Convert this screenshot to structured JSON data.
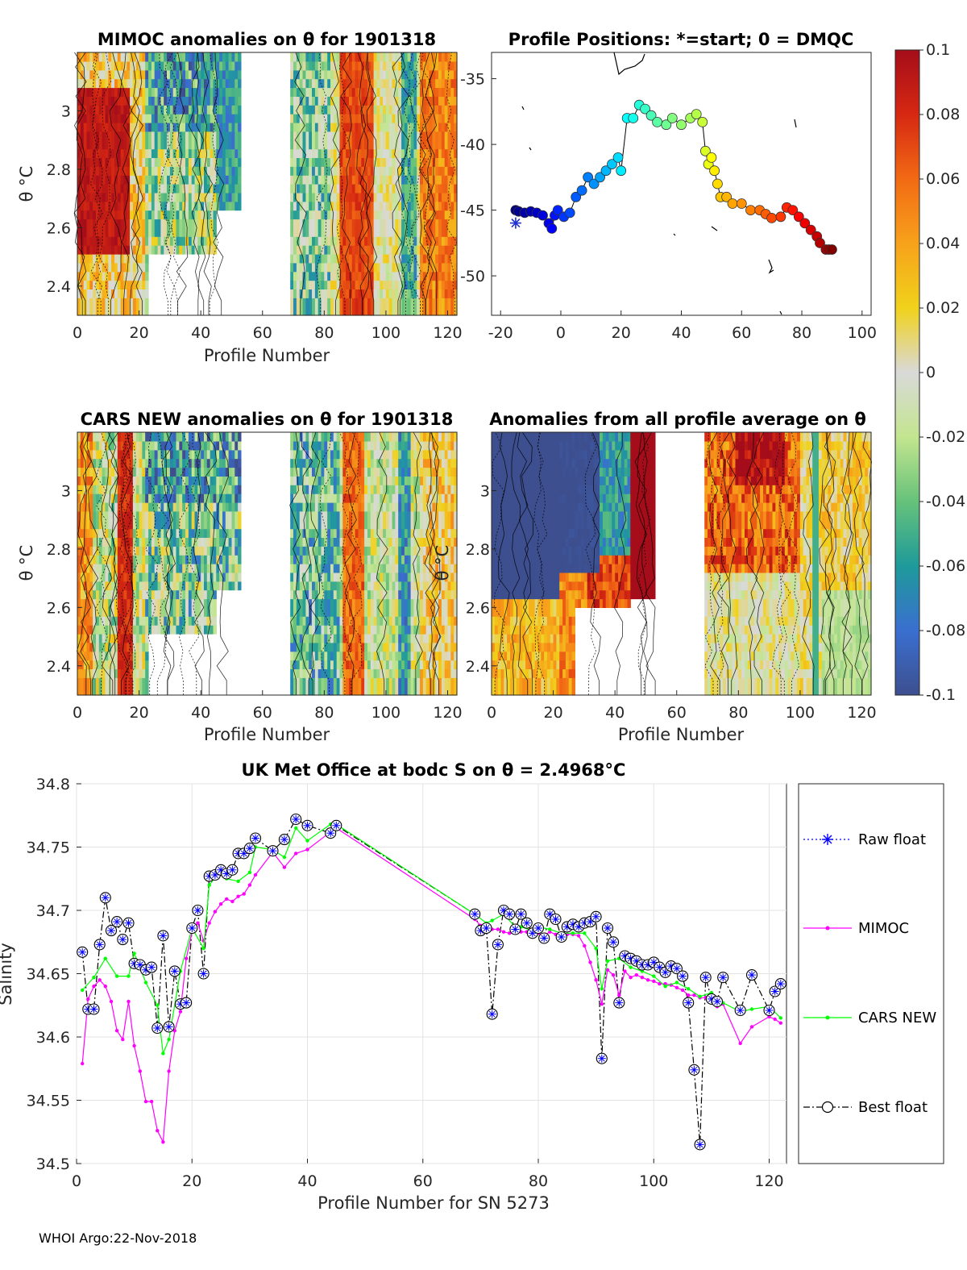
{
  "footer": "WHOI Argo:22-Nov-2018",
  "colorbar": {
    "ticks": [
      "0.1",
      "0.08",
      "0.06",
      "0.04",
      "0.02",
      "0",
      "-0.02",
      "-0.04",
      "-0.06",
      "-0.08",
      "-0.1"
    ],
    "range": [
      -0.1,
      0.1
    ]
  },
  "colors": {
    "mimoc": "#ff00ff",
    "cars": "#00ff00",
    "raw": "#0000ff",
    "best": "#000000"
  },
  "chart_data": [
    {
      "type": "heatmap",
      "id": "mimoc",
      "title": "MIMOC anomalies on θ  for 1901318",
      "xlabel": "Profile Number",
      "ylabel": "θ °C",
      "xlim": [
        0,
        123
      ],
      "ylim": [
        2.3,
        3.2
      ],
      "xticks": [
        "0",
        "20",
        "40",
        "60",
        "80",
        "100",
        "120"
      ],
      "yticks": [
        "2.4",
        "2.6",
        "2.8",
        "3"
      ]
    },
    {
      "type": "scatter",
      "id": "positions",
      "title": "Profile Positions: *=start; 0 = DMQC",
      "xlim": [
        -23,
        103
      ],
      "ylim": [
        -53,
        -33
      ],
      "xticks": [
        "-20",
        "0",
        "20",
        "40",
        "60",
        "80",
        "100"
      ],
      "yticks": [
        "-35",
        "-40",
        "-45",
        "-50"
      ],
      "points": [
        [
          -15,
          -45
        ],
        [
          -14,
          -45.1
        ],
        [
          -12,
          -45.2
        ],
        [
          -10,
          -45.1
        ],
        [
          -8,
          -45.2
        ],
        [
          -6,
          -45.4
        ],
        [
          -4,
          -46
        ],
        [
          -3,
          -46.4
        ],
        [
          -2,
          -45.4
        ],
        [
          -1,
          -45
        ],
        [
          1,
          -45.5
        ],
        [
          3,
          -45.2
        ],
        [
          5,
          -44
        ],
        [
          7,
          -43.5
        ],
        [
          9,
          -42.5
        ],
        [
          11,
          -43
        ],
        [
          13,
          -42.5
        ],
        [
          15,
          -42
        ],
        [
          17,
          -41.5
        ],
        [
          19,
          -41
        ],
        [
          20,
          -42
        ],
        [
          22,
          -38
        ],
        [
          24,
          -38
        ],
        [
          26,
          -37
        ],
        [
          28,
          -37.3
        ],
        [
          30,
          -37.8
        ],
        [
          32,
          -38.3
        ],
        [
          35,
          -38.5
        ],
        [
          37,
          -38
        ],
        [
          40,
          -38.5
        ],
        [
          43,
          -38
        ],
        [
          45,
          -37.7
        ],
        [
          47,
          -38.3
        ],
        [
          48,
          -40.5
        ],
        [
          49,
          -41.5
        ],
        [
          50,
          -41
        ],
        [
          51,
          -42
        ],
        [
          52,
          -43
        ],
        [
          53,
          -44
        ],
        [
          55,
          -44
        ],
        [
          57,
          -44.5
        ],
        [
          60,
          -44.5
        ],
        [
          63,
          -45
        ],
        [
          66,
          -45
        ],
        [
          68,
          -45.3
        ],
        [
          70,
          -45.6
        ],
        [
          73,
          -45.5
        ],
        [
          75,
          -44.8
        ],
        [
          77,
          -45
        ],
        [
          79,
          -45.5
        ],
        [
          81,
          -46
        ],
        [
          83,
          -46.5
        ],
        [
          85,
          -47
        ],
        [
          86,
          -47.5
        ],
        [
          88,
          -48
        ],
        [
          89,
          -48
        ],
        [
          90,
          -48
        ]
      ]
    },
    {
      "type": "heatmap",
      "id": "cars",
      "title": "CARS NEW anomalies on θ for 1901318",
      "xlabel": "Profile Number",
      "ylabel": "θ °C",
      "xlim": [
        0,
        123
      ],
      "ylim": [
        2.3,
        3.2
      ],
      "xticks": [
        "0",
        "20",
        "40",
        "60",
        "80",
        "100",
        "120"
      ],
      "yticks": [
        "2.4",
        "2.6",
        "2.8",
        "3"
      ]
    },
    {
      "type": "heatmap",
      "id": "allavg",
      "title": "Anomalies from all profile average on θ",
      "xlabel": "Profile Number",
      "ylabel": "θ °C",
      "xlim": [
        0,
        123
      ],
      "ylim": [
        2.3,
        3.2
      ],
      "xticks": [
        "0",
        "20",
        "40",
        "60",
        "80",
        "100",
        "120"
      ],
      "yticks": [
        "2.4",
        "2.6",
        "2.8",
        "3"
      ]
    },
    {
      "type": "line",
      "id": "salinity",
      "title": "UK Met Office at bodc S on θ = 2.4968°C",
      "xlabel": "Profile Number for SN 5273",
      "ylabel": "Salinity",
      "xlim": [
        0,
        123
      ],
      "ylim": [
        34.5,
        34.8
      ],
      "xticks": [
        "0",
        "20",
        "40",
        "60",
        "80",
        "100",
        "120"
      ],
      "yticks": [
        "34.5",
        "34.55",
        "34.6",
        "34.65",
        "34.7",
        "34.75",
        "34.8"
      ],
      "legend": [
        "Raw float",
        "MIMOC",
        "CARS NEW",
        "Best float"
      ],
      "series": [
        {
          "name": "Best float",
          "x": [
            1,
            2,
            3,
            4,
            5,
            6,
            7,
            8,
            9,
            10,
            11,
            12,
            13,
            14,
            15,
            16,
            17,
            18,
            19,
            20,
            21,
            22,
            23,
            24,
            25,
            26,
            27,
            28,
            29,
            30,
            31,
            34,
            36,
            38,
            40,
            44,
            45,
            69,
            70,
            71,
            72,
            73,
            74,
            75,
            76,
            77,
            78,
            79,
            80,
            81,
            82,
            83,
            84,
            85,
            86,
            87,
            88,
            89,
            90,
            91,
            92,
            93,
            94,
            95,
            96,
            97,
            98,
            99,
            100,
            101,
            102,
            103,
            104,
            105,
            106,
            107,
            108,
            109,
            110,
            111,
            112,
            115,
            117,
            120,
            121,
            122
          ],
          "values": [
            34.667,
            34.622,
            34.622,
            34.673,
            34.71,
            34.684,
            34.691,
            34.677,
            34.69,
            34.658,
            34.657,
            34.653,
            34.655,
            34.607,
            34.68,
            34.608,
            34.652,
            34.626,
            34.627,
            34.686,
            34.7,
            34.65,
            34.727,
            34.728,
            34.732,
            34.729,
            34.732,
            34.745,
            34.745,
            34.749,
            34.757,
            34.747,
            34.756,
            34.772,
            34.767,
            34.761,
            34.767,
            34.697,
            34.684,
            34.686,
            34.618,
            34.673,
            34.7,
            34.697,
            34.685,
            34.697,
            34.69,
            34.682,
            34.686,
            34.678,
            34.697,
            34.693,
            34.679,
            34.687,
            34.689,
            34.687,
            34.69,
            34.691,
            34.695,
            34.583,
            34.686,
            34.675,
            34.627,
            34.664,
            34.662,
            34.66,
            34.657,
            34.657,
            34.659,
            34.655,
            34.651,
            34.656,
            34.654,
            34.648,
            34.627,
            34.574,
            34.515,
            34.647,
            34.63,
            34.628,
            34.647,
            34.621,
            34.649,
            34.621,
            34.636,
            34.642
          ]
        },
        {
          "name": "CARS NEW",
          "x": [
            1,
            3,
            5,
            7,
            9,
            10,
            12,
            14,
            15,
            16,
            18,
            20,
            22,
            23,
            24,
            25,
            26,
            28,
            30,
            31,
            34,
            36,
            38,
            40,
            44,
            45,
            69,
            71,
            72,
            74,
            76,
            77,
            79,
            80,
            82,
            84,
            86,
            88,
            90,
            91,
            92,
            94,
            96,
            98,
            100,
            102,
            104,
            106,
            108,
            110,
            112,
            115,
            117,
            120,
            122
          ],
          "values": [
            34.637,
            34.647,
            34.662,
            34.648,
            34.648,
            34.666,
            34.643,
            34.625,
            34.587,
            34.598,
            34.652,
            34.686,
            34.67,
            34.72,
            34.726,
            34.73,
            34.725,
            34.723,
            34.73,
            34.75,
            34.748,
            34.742,
            34.765,
            34.755,
            34.768,
            34.768,
            34.697,
            34.69,
            34.692,
            34.697,
            34.687,
            34.687,
            34.684,
            34.687,
            34.685,
            34.682,
            34.682,
            34.682,
            34.67,
            34.638,
            34.66,
            34.662,
            34.655,
            34.652,
            34.648,
            34.64,
            34.643,
            34.638,
            34.632,
            34.635,
            34.627,
            34.62,
            34.622,
            34.624,
            34.615
          ]
        },
        {
          "name": "MIMOC",
          "x": [
            1,
            2,
            3,
            4,
            5,
            6,
            7,
            8,
            9,
            10,
            11,
            12,
            13,
            14,
            15,
            16,
            17,
            18,
            19,
            20,
            21,
            22,
            23,
            24,
            25,
            26,
            27,
            28,
            29,
            30,
            31,
            34,
            36,
            38,
            40,
            44,
            45,
            69,
            70,
            71,
            72,
            73,
            74,
            75,
            76,
            77,
            78,
            79,
            80,
            81,
            82,
            83,
            84,
            85,
            86,
            87,
            88,
            89,
            90,
            91,
            92,
            93,
            94,
            95,
            96,
            97,
            98,
            99,
            100,
            101,
            102,
            103,
            104,
            105,
            106,
            107,
            108,
            109,
            110,
            111,
            112,
            115,
            117,
            120,
            121,
            122
          ],
          "values": [
            34.579,
            34.63,
            34.64,
            34.645,
            34.64,
            34.628,
            34.605,
            34.598,
            34.628,
            34.593,
            34.573,
            34.549,
            34.549,
            34.526,
            34.517,
            34.573,
            34.605,
            34.62,
            34.662,
            34.683,
            34.69,
            34.676,
            34.69,
            34.699,
            34.705,
            34.709,
            34.707,
            34.711,
            34.713,
            34.72,
            34.728,
            34.746,
            34.734,
            34.745,
            34.748,
            34.762,
            34.765,
            34.693,
            34.688,
            34.688,
            34.685,
            34.685,
            34.683,
            34.682,
            34.682,
            34.683,
            34.683,
            34.68,
            34.682,
            34.68,
            34.683,
            34.681,
            34.678,
            34.681,
            34.681,
            34.68,
            34.672,
            34.659,
            34.645,
            34.626,
            34.653,
            34.649,
            34.633,
            34.652,
            34.647,
            34.649,
            34.647,
            34.645,
            34.644,
            34.642,
            34.642,
            34.641,
            34.639,
            34.637,
            34.633,
            34.633,
            34.631,
            34.631,
            34.627,
            34.624,
            34.626,
            34.595,
            34.608,
            34.616,
            34.614,
            34.611
          ]
        }
      ]
    }
  ]
}
